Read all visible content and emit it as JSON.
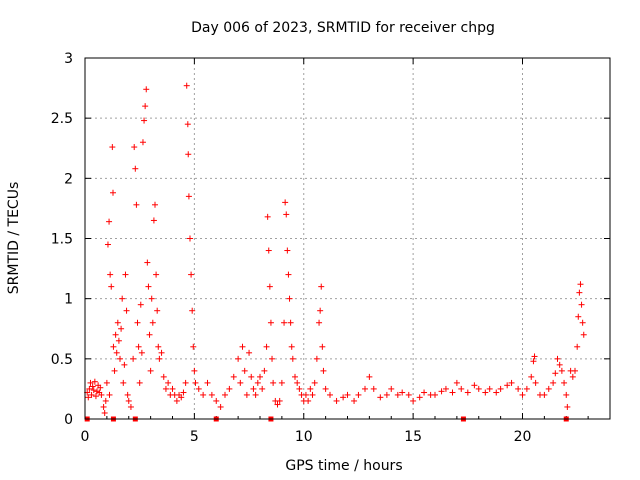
{
  "chart_data": {
    "type": "scatter",
    "title": "Day 006 of 2023, SRMTID for receiver chpg",
    "xlabel": "GPS time / hours",
    "ylabel": "SRMTID / TECUs",
    "xlim": [
      0,
      24
    ],
    "ylim": [
      0,
      3
    ],
    "xticks": [
      0,
      5,
      10,
      15,
      20
    ],
    "yticks": [
      0,
      0.5,
      1,
      1.5,
      2,
      2.5,
      3
    ],
    "xtick_labels": [
      "0",
      "5",
      "10",
      "15",
      "20"
    ],
    "ytick_labels": [
      "0",
      "0.5",
      "1",
      "1.5",
      "2",
      "2.5",
      "3"
    ],
    "grid": true,
    "marker": "+",
    "series": [
      {
        "name": "SRMTID",
        "color": "#ff0000",
        "points": [
          [
            0.1,
            0.22
          ],
          [
            0.15,
            0.18
          ],
          [
            0.2,
            0.25
          ],
          [
            0.25,
            0.3
          ],
          [
            0.3,
            0.2
          ],
          [
            0.35,
            0.27
          ],
          [
            0.4,
            0.24
          ],
          [
            0.45,
            0.31
          ],
          [
            0.5,
            0.19
          ],
          [
            0.55,
            0.23
          ],
          [
            0.6,
            0.28
          ],
          [
            0.65,
            0.22
          ],
          [
            0.7,
            0.26
          ],
          [
            0.75,
            0.2
          ],
          [
            0.85,
            0.1
          ],
          [
            0.9,
            0.05
          ],
          [
            0.95,
            0.15
          ],
          [
            1.0,
            0.3
          ],
          [
            1.05,
            1.45
          ],
          [
            1.1,
            1.64
          ],
          [
            1.12,
            0.2
          ],
          [
            1.15,
            1.2
          ],
          [
            1.2,
            1.1
          ],
          [
            1.25,
            2.26
          ],
          [
            1.28,
            1.88
          ],
          [
            1.3,
            0.6
          ],
          [
            1.35,
            0.4
          ],
          [
            1.4,
            0.7
          ],
          [
            1.45,
            0.55
          ],
          [
            1.5,
            0.8
          ],
          [
            1.55,
            0.65
          ],
          [
            1.6,
            0.5
          ],
          [
            1.65,
            0.75
          ],
          [
            1.7,
            1.0
          ],
          [
            1.75,
            0.3
          ],
          [
            1.8,
            0.45
          ],
          [
            1.85,
            1.2
          ],
          [
            1.9,
            0.9
          ],
          [
            1.95,
            0.2
          ],
          [
            2.0,
            0.15
          ],
          [
            2.1,
            0.1
          ],
          [
            2.2,
            0.5
          ],
          [
            2.25,
            2.26
          ],
          [
            2.3,
            2.08
          ],
          [
            2.35,
            1.78
          ],
          [
            2.4,
            0.8
          ],
          [
            2.45,
            0.6
          ],
          [
            2.5,
            0.3
          ],
          [
            2.55,
            0.95
          ],
          [
            2.6,
            0.55
          ],
          [
            2.65,
            2.3
          ],
          [
            2.7,
            2.48
          ],
          [
            2.75,
            2.6
          ],
          [
            2.8,
            2.74
          ],
          [
            2.85,
            1.3
          ],
          [
            2.9,
            1.1
          ],
          [
            2.95,
            0.7
          ],
          [
            3.0,
            0.4
          ],
          [
            3.05,
            1.0
          ],
          [
            3.1,
            0.8
          ],
          [
            3.15,
            1.65
          ],
          [
            3.2,
            1.78
          ],
          [
            3.25,
            1.2
          ],
          [
            3.3,
            0.9
          ],
          [
            3.35,
            0.6
          ],
          [
            3.4,
            0.5
          ],
          [
            3.5,
            0.55
          ],
          [
            3.6,
            0.35
          ],
          [
            3.7,
            0.25
          ],
          [
            3.8,
            0.3
          ],
          [
            3.9,
            0.2
          ],
          [
            4.0,
            0.25
          ],
          [
            4.1,
            0.2
          ],
          [
            4.2,
            0.15
          ],
          [
            4.3,
            0.2
          ],
          [
            4.4,
            0.18
          ],
          [
            4.5,
            0.22
          ],
          [
            4.6,
            0.3
          ],
          [
            4.65,
            2.77
          ],
          [
            4.7,
            2.45
          ],
          [
            4.72,
            2.2
          ],
          [
            4.75,
            1.85
          ],
          [
            4.8,
            1.5
          ],
          [
            4.85,
            1.2
          ],
          [
            4.9,
            0.9
          ],
          [
            4.95,
            0.6
          ],
          [
            5.0,
            0.4
          ],
          [
            5.05,
            0.3
          ],
          [
            5.2,
            0.25
          ],
          [
            5.4,
            0.2
          ],
          [
            5.6,
            0.3
          ],
          [
            5.8,
            0.2
          ],
          [
            6.0,
            0.15
          ],
          [
            6.2,
            0.1
          ],
          [
            6.4,
            0.2
          ],
          [
            6.6,
            0.25
          ],
          [
            6.8,
            0.35
          ],
          [
            7.0,
            0.5
          ],
          [
            7.1,
            0.3
          ],
          [
            7.2,
            0.6
          ],
          [
            7.3,
            0.4
          ],
          [
            7.4,
            0.2
          ],
          [
            7.5,
            0.55
          ],
          [
            7.6,
            0.35
          ],
          [
            7.7,
            0.25
          ],
          [
            7.8,
            0.2
          ],
          [
            7.9,
            0.3
          ],
          [
            8.0,
            0.35
          ],
          [
            8.1,
            0.25
          ],
          [
            8.2,
            0.4
          ],
          [
            8.3,
            0.6
          ],
          [
            8.35,
            1.68
          ],
          [
            8.4,
            1.4
          ],
          [
            8.45,
            1.1
          ],
          [
            8.5,
            0.8
          ],
          [
            8.55,
            0.5
          ],
          [
            8.6,
            0.3
          ],
          [
            8.7,
            0.15
          ],
          [
            8.8,
            0.12
          ],
          [
            8.9,
            0.15
          ],
          [
            9.0,
            0.3
          ],
          [
            9.1,
            0.8
          ],
          [
            9.15,
            1.8
          ],
          [
            9.2,
            1.7
          ],
          [
            9.25,
            1.4
          ],
          [
            9.3,
            1.2
          ],
          [
            9.35,
            1.0
          ],
          [
            9.4,
            0.8
          ],
          [
            9.45,
            0.6
          ],
          [
            9.5,
            0.5
          ],
          [
            9.6,
            0.35
          ],
          [
            9.7,
            0.3
          ],
          [
            9.8,
            0.25
          ],
          [
            9.9,
            0.2
          ],
          [
            10.0,
            0.15
          ],
          [
            10.1,
            0.2
          ],
          [
            10.2,
            0.15
          ],
          [
            10.3,
            0.25
          ],
          [
            10.4,
            0.2
          ],
          [
            10.5,
            0.3
          ],
          [
            10.6,
            0.5
          ],
          [
            10.7,
            0.8
          ],
          [
            10.75,
            0.9
          ],
          [
            10.8,
            1.1
          ],
          [
            10.85,
            0.6
          ],
          [
            10.9,
            0.4
          ],
          [
            11.0,
            0.25
          ],
          [
            11.2,
            0.2
          ],
          [
            11.5,
            0.15
          ],
          [
            11.8,
            0.18
          ],
          [
            12.0,
            0.2
          ],
          [
            12.3,
            0.15
          ],
          [
            12.5,
            0.2
          ],
          [
            12.8,
            0.25
          ],
          [
            13.0,
            0.35
          ],
          [
            13.2,
            0.25
          ],
          [
            13.5,
            0.18
          ],
          [
            13.8,
            0.2
          ],
          [
            14.0,
            0.25
          ],
          [
            14.3,
            0.2
          ],
          [
            14.5,
            0.22
          ],
          [
            14.8,
            0.2
          ],
          [
            15.0,
            0.15
          ],
          [
            15.3,
            0.18
          ],
          [
            15.5,
            0.22
          ],
          [
            15.8,
            0.2
          ],
          [
            16.0,
            0.2
          ],
          [
            16.3,
            0.23
          ],
          [
            16.5,
            0.25
          ],
          [
            16.8,
            0.22
          ],
          [
            17.0,
            0.3
          ],
          [
            17.2,
            0.25
          ],
          [
            17.5,
            0.22
          ],
          [
            17.8,
            0.28
          ],
          [
            18.0,
            0.25
          ],
          [
            18.3,
            0.22
          ],
          [
            18.5,
            0.25
          ],
          [
            18.8,
            0.22
          ],
          [
            19.0,
            0.25
          ],
          [
            19.3,
            0.28
          ],
          [
            19.5,
            0.3
          ],
          [
            19.8,
            0.25
          ],
          [
            20.0,
            0.2
          ],
          [
            20.2,
            0.25
          ],
          [
            20.4,
            0.35
          ],
          [
            20.5,
            0.48
          ],
          [
            20.55,
            0.52
          ],
          [
            20.6,
            0.3
          ],
          [
            20.8,
            0.2
          ],
          [
            21.0,
            0.2
          ],
          [
            21.2,
            0.25
          ],
          [
            21.4,
            0.3
          ],
          [
            21.5,
            0.38
          ],
          [
            21.6,
            0.5
          ],
          [
            21.7,
            0.45
          ],
          [
            21.8,
            0.4
          ],
          [
            21.9,
            0.3
          ],
          [
            22.0,
            0.2
          ],
          [
            22.05,
            0.1
          ],
          [
            22.2,
            0.4
          ],
          [
            22.3,
            0.35
          ],
          [
            22.4,
            0.4
          ],
          [
            22.5,
            0.6
          ],
          [
            22.55,
            0.85
          ],
          [
            22.6,
            1.05
          ],
          [
            22.65,
            1.12
          ],
          [
            22.7,
            0.95
          ],
          [
            22.75,
            0.8
          ],
          [
            22.8,
            0.7
          ]
        ],
        "zero_markers": [
          0.1,
          1.3,
          2.3,
          6.0,
          8.5,
          17.3,
          22.0
        ]
      }
    ]
  }
}
